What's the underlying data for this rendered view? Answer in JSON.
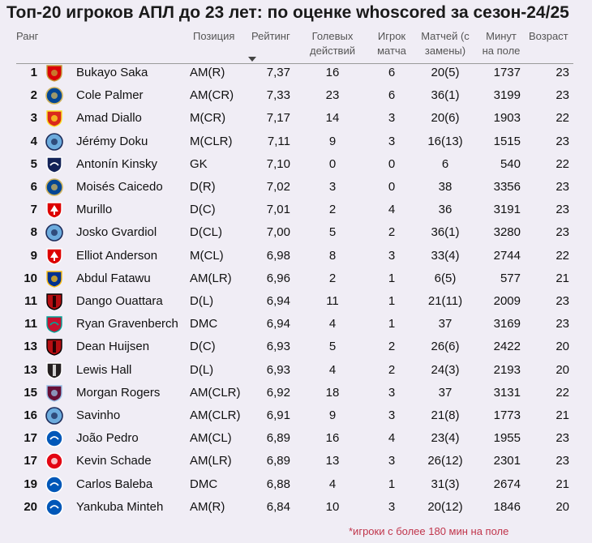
{
  "title": "Топ-20 игроков АПЛ до 23 лет: по оценке whoscored за сезон-24/25",
  "headers": {
    "rank": "Ранг",
    "position": "Позиция",
    "rating": "Рейтинг",
    "goals_1": "Голевых",
    "goals_2": "действий",
    "mom_1": "Игрок",
    "mom_2": "матча",
    "apps_1": "Матчей (с",
    "apps_2": "замены)",
    "minutes_1": "Минут",
    "minutes_2": "на поле",
    "age": "Возраст"
  },
  "sort_indicator": "sorted-descending-arrow",
  "rows": [
    {
      "rank": "1",
      "club": "arsenal-badge",
      "name": "Bukayo Saka",
      "position": "AM(R)",
      "rating": "7,37",
      "goal_actions": "16",
      "mom": "6",
      "apps": "20(5)",
      "minutes": "1737",
      "age": "23"
    },
    {
      "rank": "2",
      "club": "chelsea-badge",
      "name": "Cole Palmer",
      "position": "AM(CR)",
      "rating": "7,33",
      "goal_actions": "23",
      "mom": "6",
      "apps": "36(1)",
      "minutes": "3199",
      "age": "23"
    },
    {
      "rank": "3",
      "club": "man-utd-badge",
      "name": "Amad Diallo",
      "position": "M(CR)",
      "rating": "7,17",
      "goal_actions": "14",
      "mom": "3",
      "apps": "20(6)",
      "minutes": "1903",
      "age": "22"
    },
    {
      "rank": "4",
      "club": "man-city-badge",
      "name": "Jérémy Doku",
      "position": "M(CLR)",
      "rating": "7,11",
      "goal_actions": "9",
      "mom": "3",
      "apps": "16(13)",
      "minutes": "1515",
      "age": "23"
    },
    {
      "rank": "5",
      "club": "tottenham-badge",
      "name": "Antonín Kinsky",
      "position": "GK",
      "rating": "7,10",
      "goal_actions": "0",
      "mom": "0",
      "apps": "6",
      "minutes": "540",
      "age": "22"
    },
    {
      "rank": "6",
      "club": "chelsea-badge",
      "name": "Moisés Caicedo",
      "position": "D(R)",
      "rating": "7,02",
      "goal_actions": "3",
      "mom": "0",
      "apps": "38",
      "minutes": "3356",
      "age": "23"
    },
    {
      "rank": "7",
      "club": "nottingham-forest-badge",
      "name": "Murillo",
      "position": "D(C)",
      "rating": "7,01",
      "goal_actions": "2",
      "mom": "4",
      "apps": "36",
      "minutes": "3191",
      "age": "23"
    },
    {
      "rank": "8",
      "club": "man-city-badge",
      "name": "Josko Gvardiol",
      "position": "D(CL)",
      "rating": "7,00",
      "goal_actions": "5",
      "mom": "2",
      "apps": "36(1)",
      "minutes": "3280",
      "age": "23"
    },
    {
      "rank": "9",
      "club": "nottingham-forest-badge",
      "name": "Elliot Anderson",
      "position": "M(CL)",
      "rating": "6,98",
      "goal_actions": "8",
      "mom": "3",
      "apps": "33(4)",
      "minutes": "2744",
      "age": "22"
    },
    {
      "rank": "10",
      "club": "leicester-badge",
      "name": "Abdul Fatawu",
      "position": "AM(LR)",
      "rating": "6,96",
      "goal_actions": "2",
      "mom": "1",
      "apps": "6(5)",
      "minutes": "577",
      "age": "21"
    },
    {
      "rank": "11",
      "club": "bournemouth-badge",
      "name": "Dango Ouattara",
      "position": "D(L)",
      "rating": "6,94",
      "goal_actions": "11",
      "mom": "1",
      "apps": "21(11)",
      "minutes": "2009",
      "age": "23"
    },
    {
      "rank": "11",
      "club": "liverpool-badge",
      "name": "Ryan Gravenberch",
      "position": "DMC",
      "rating": "6,94",
      "goal_actions": "4",
      "mom": "1",
      "apps": "37",
      "minutes": "3169",
      "age": "23"
    },
    {
      "rank": "13",
      "club": "bournemouth-badge",
      "name": "Dean Huijsen",
      "position": "D(C)",
      "rating": "6,93",
      "goal_actions": "5",
      "mom": "2",
      "apps": "26(6)",
      "minutes": "2422",
      "age": "20"
    },
    {
      "rank": "13",
      "club": "newcastle-badge",
      "name": "Lewis Hall",
      "position": "D(L)",
      "rating": "6,93",
      "goal_actions": "4",
      "mom": "2",
      "apps": "24(3)",
      "minutes": "2193",
      "age": "20"
    },
    {
      "rank": "15",
      "club": "aston-villa-badge",
      "name": "Morgan Rogers",
      "position": "AM(CLR)",
      "rating": "6,92",
      "goal_actions": "18",
      "mom": "3",
      "apps": "37",
      "minutes": "3131",
      "age": "22"
    },
    {
      "rank": "16",
      "club": "man-city-badge",
      "name": "Savinho",
      "position": "AM(CLR)",
      "rating": "6,91",
      "goal_actions": "9",
      "mom": "3",
      "apps": "21(8)",
      "minutes": "1773",
      "age": "21"
    },
    {
      "rank": "17",
      "club": "brighton-badge",
      "name": "João Pedro",
      "position": "AM(CL)",
      "rating": "6,89",
      "goal_actions": "16",
      "mom": "4",
      "apps": "23(4)",
      "minutes": "1955",
      "age": "23"
    },
    {
      "rank": "17",
      "club": "brentford-badge",
      "name": "Kevin Schade",
      "position": "AM(LR)",
      "rating": "6,89",
      "goal_actions": "13",
      "mom": "3",
      "apps": "26(12)",
      "minutes": "2301",
      "age": "23"
    },
    {
      "rank": "19",
      "club": "brighton-badge",
      "name": "Carlos Baleba",
      "position": "DMC",
      "rating": "6,88",
      "goal_actions": "4",
      "mom": "1",
      "apps": "31(3)",
      "minutes": "2674",
      "age": "21"
    },
    {
      "rank": "20",
      "club": "brighton-badge",
      "name": "Yankuba Minteh",
      "position": "AM(R)",
      "rating": "6,84",
      "goal_actions": "10",
      "mom": "3",
      "apps": "20(12)",
      "minutes": "1846",
      "age": "20"
    }
  ],
  "footnote": "*игроки с более 180 мин на поле",
  "colors": {
    "background": "#f0edf5",
    "footnote": "#c0354b",
    "arsenal": "#db0007",
    "chelsea": "#034694",
    "man_utd": "#da291c",
    "man_city": "#6cabdd",
    "tottenham": "#132257",
    "forest": "#dd0000",
    "leicester": "#003090",
    "bournemouth": "#b50e12",
    "liverpool": "#c8102e",
    "newcastle": "#241f20",
    "aston_villa": "#670e36",
    "brighton": "#0057b8",
    "brentford": "#e30613"
  }
}
